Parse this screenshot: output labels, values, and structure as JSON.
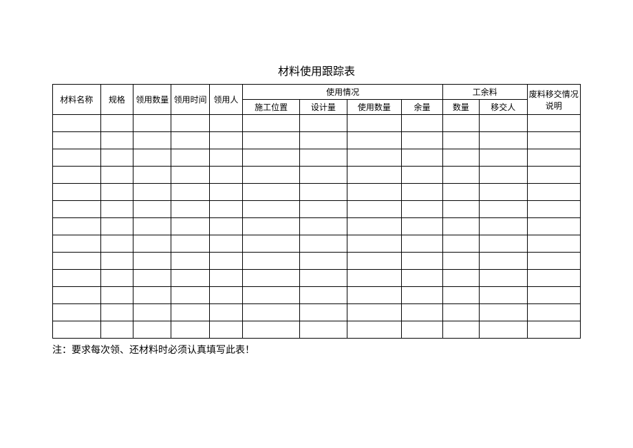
{
  "title": "材料使用跟踪表",
  "headers": {
    "material_name": "材料名称",
    "spec": "规格",
    "borrow_qty": "领用数量",
    "borrow_time": "领用时间",
    "borrower": "领用人",
    "usage_group": "使用情况",
    "construction_pos": "施工位置",
    "design_qty": "设计量",
    "use_qty": "使用数量",
    "remaining": "余量",
    "leftover_group": "工余料",
    "leftover_qty": "数量",
    "handover_person": "移交人",
    "waste_note": "废料移交情况说明"
  },
  "note": "注：要求每次领、还材料时必须认真填写此表！",
  "row_count": 13,
  "columns": [
    "col-name",
    "col-spec",
    "col-qty",
    "col-time",
    "col-person",
    "col-pos",
    "col-design",
    "col-useqty",
    "col-remain",
    "col-leftqty",
    "col-handover",
    "col-waste"
  ],
  "colors": {
    "background": "#ffffff",
    "border": "#000000",
    "text": "#000000"
  },
  "fontsize": {
    "title": 16,
    "header": 12,
    "note": 14
  }
}
